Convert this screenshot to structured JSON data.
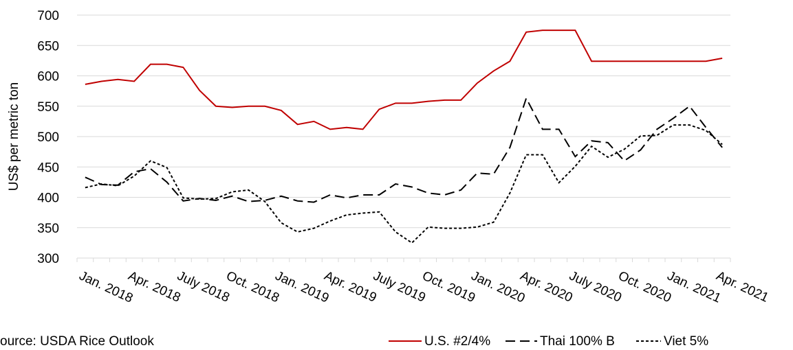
{
  "chart_data": {
    "type": "line",
    "y_label": "US$ per metric ton",
    "source": "ource: USDA Rice Outlook",
    "categories": [
      "Jan. 2018",
      null,
      null,
      "Apr. 2018",
      null,
      null,
      "July 2018",
      null,
      null,
      "Oct. 2018",
      null,
      null,
      "Jan. 2019",
      null,
      null,
      "Apr. 2019",
      null,
      null,
      "July 2019",
      null,
      null,
      "Oct. 2019",
      null,
      null,
      "Jan. 2020",
      null,
      null,
      "Apr. 2020",
      null,
      null,
      "July 2020",
      null,
      null,
      "Oct. 2020",
      null,
      null,
      "Jan. 2021",
      null,
      null,
      "Apr. 2021"
    ],
    "series": [
      {
        "name": "U.S. #2/4%",
        "color": "#c00000",
        "dash": "none",
        "values": [
          586,
          591,
          594,
          591,
          619,
          619,
          614,
          576,
          550,
          548,
          550,
          550,
          543,
          520,
          525,
          512,
          515,
          512,
          545,
          555,
          555,
          558,
          560,
          560,
          588,
          608,
          624,
          672,
          675,
          675,
          675,
          624,
          624,
          624,
          624,
          624,
          624,
          624,
          624,
          629
        ]
      },
      {
        "name": "Thai 100% B",
        "color": "#000000",
        "dash": "dashed",
        "values": [
          433,
          421,
          420,
          442,
          447,
          425,
          394,
          398,
          395,
          402,
          393,
          395,
          402,
          394,
          392,
          404,
          399,
          404,
          404,
          422,
          417,
          407,
          404,
          412,
          440,
          438,
          482,
          563,
          512,
          512,
          467,
          493,
          490,
          460,
          478,
          512,
          530,
          550,
          515,
          482
        ]
      },
      {
        "name": "Viet 5%",
        "color": "#000000",
        "dash": "dotted",
        "values": [
          416,
          422,
          419,
          435,
          460,
          449,
          399,
          397,
          398,
          409,
          412,
          393,
          358,
          343,
          349,
          361,
          371,
          374,
          376,
          343,
          325,
          351,
          349,
          349,
          351,
          359,
          407,
          470,
          470,
          424,
          451,
          484,
          466,
          479,
          501,
          502,
          519,
          519,
          510,
          487
        ]
      }
    ],
    "ylim": [
      300,
      700
    ],
    "yticks": [
      300,
      350,
      400,
      450,
      500,
      550,
      600,
      650,
      700
    ],
    "grid": true
  }
}
